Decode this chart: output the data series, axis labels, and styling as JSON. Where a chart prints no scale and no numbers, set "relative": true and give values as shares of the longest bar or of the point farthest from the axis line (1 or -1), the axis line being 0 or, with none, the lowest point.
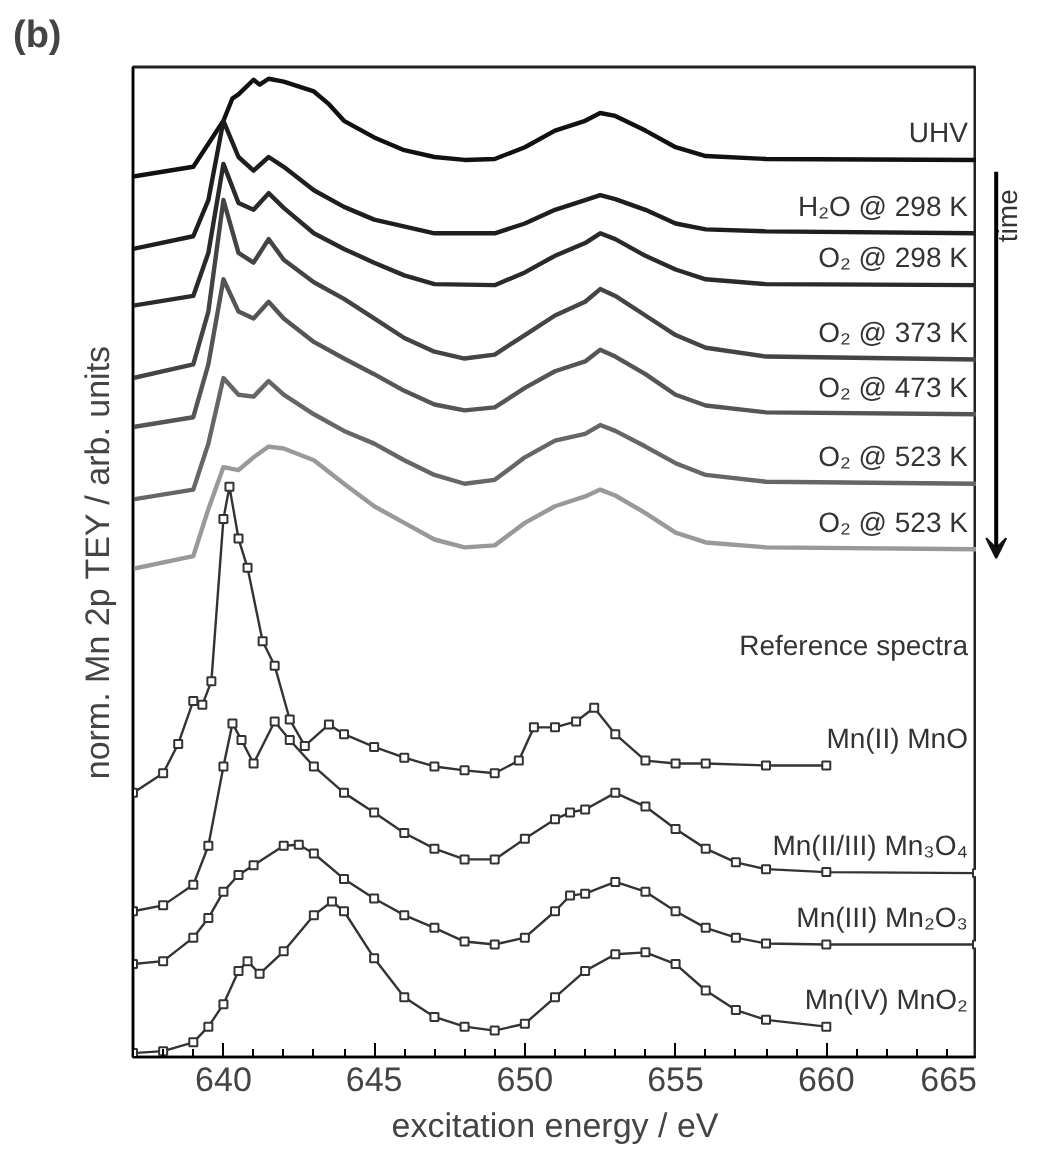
{
  "chart_data": {
    "type": "line",
    "relative": true,
    "xlabel": "excitation energy / eV",
    "ylabel": "norm. Mn 2p TEY / arb. units",
    "xlim": [
      637,
      665
    ],
    "xticks": [
      640,
      645,
      650,
      655,
      660,
      665
    ],
    "tick_labels": "x",
    "legend": false,
    "grid": false,
    "annotations": [
      "(b)",
      "Reference spectra",
      "time"
    ],
    "series": [
      {
        "name": "UHV",
        "color": "#111111",
        "x": [
          637,
          639,
          640,
          640.3,
          640.5,
          641,
          641.2,
          641.5,
          642,
          643,
          643.5,
          644,
          645,
          646,
          647,
          648,
          649,
          650,
          651,
          652,
          652.5,
          653,
          654,
          655,
          656,
          658,
          665
        ],
        "values": [
          0.9,
          0.91,
          0.957,
          0.98,
          0.984,
          0.999,
          0.994,
          1.0,
          0.997,
          0.987,
          0.974,
          0.957,
          0.94,
          0.927,
          0.92,
          0.917,
          0.918,
          0.93,
          0.947,
          0.957,
          0.965,
          0.962,
          0.947,
          0.93,
          0.921,
          0.918,
          0.917
        ]
      },
      {
        "name": "H₂O @ 298 K",
        "color": "#1e1e1e",
        "x": [
          637,
          639,
          639.5,
          640,
          640.5,
          641,
          641.5,
          642,
          643,
          644,
          645,
          647,
          649,
          650,
          651,
          652,
          652.5,
          653,
          654,
          655,
          656,
          658,
          665
        ],
        "values": [
          0.826,
          0.839,
          0.876,
          0.957,
          0.92,
          0.906,
          0.92,
          0.91,
          0.886,
          0.869,
          0.856,
          0.842,
          0.842,
          0.852,
          0.866,
          0.876,
          0.881,
          0.877,
          0.866,
          0.852,
          0.846,
          0.844,
          0.842
        ]
      },
      {
        "name": "O₂ @ 298 K",
        "color": "#2a2a2a",
        "x": [
          637,
          639,
          639.5,
          640,
          640.5,
          641,
          641.5,
          642,
          643,
          644,
          645,
          646,
          647,
          649,
          650,
          651,
          652,
          652.5,
          653,
          654,
          655,
          656,
          658,
          665
        ],
        "values": [
          0.768,
          0.778,
          0.822,
          0.913,
          0.873,
          0.866,
          0.883,
          0.868,
          0.842,
          0.826,
          0.812,
          0.799,
          0.79,
          0.789,
          0.802,
          0.819,
          0.832,
          0.842,
          0.836,
          0.819,
          0.805,
          0.795,
          0.79,
          0.789
        ]
      },
      {
        "name": "O₂ @ 373 K",
        "color": "#444444",
        "x": [
          637,
          639,
          639.5,
          640,
          640.5,
          641,
          641.5,
          642,
          643,
          644,
          645,
          646,
          647,
          648,
          649,
          650,
          651,
          652,
          652.5,
          653,
          654,
          655,
          656,
          658,
          665
        ],
        "values": [
          0.694,
          0.708,
          0.762,
          0.876,
          0.822,
          0.812,
          0.836,
          0.815,
          0.792,
          0.775,
          0.755,
          0.735,
          0.721,
          0.714,
          0.718,
          0.738,
          0.758,
          0.772,
          0.785,
          0.778,
          0.758,
          0.738,
          0.725,
          0.716,
          0.713
        ]
      },
      {
        "name": "O₂ @ 473 K",
        "color": "#555555",
        "x": [
          637,
          639,
          639.5,
          640,
          640.5,
          641,
          641.5,
          642,
          643,
          644,
          645,
          646,
          647,
          648,
          649,
          650,
          651,
          652,
          652.5,
          653,
          654,
          655,
          656,
          658,
          665
        ],
        "values": [
          0.644,
          0.654,
          0.708,
          0.795,
          0.762,
          0.755,
          0.772,
          0.755,
          0.731,
          0.714,
          0.698,
          0.681,
          0.667,
          0.661,
          0.664,
          0.684,
          0.701,
          0.711,
          0.723,
          0.716,
          0.698,
          0.677,
          0.666,
          0.659,
          0.657
        ]
      },
      {
        "name": "O₂ @ 523 K",
        "color": "#666666",
        "x": [
          637,
          639,
          639.5,
          640,
          640.5,
          641,
          641.5,
          642,
          643,
          644,
          645,
          646,
          647,
          648,
          649,
          650,
          651,
          652,
          652.5,
          653,
          654,
          655,
          656,
          658,
          665
        ],
        "values": [
          0.57,
          0.58,
          0.627,
          0.694,
          0.677,
          0.675,
          0.691,
          0.677,
          0.657,
          0.64,
          0.627,
          0.61,
          0.595,
          0.586,
          0.59,
          0.613,
          0.63,
          0.637,
          0.646,
          0.64,
          0.624,
          0.607,
          0.595,
          0.588,
          0.586
        ]
      },
      {
        "name": "O₂ @ 523 K",
        "color": "#999999",
        "x": [
          637,
          639,
          639.5,
          640,
          640.5,
          641,
          641.5,
          642,
          643,
          644,
          645,
          646,
          647,
          648,
          649,
          650,
          651,
          652,
          652.5,
          653,
          654,
          655,
          656,
          658,
          665
        ],
        "values": [
          0.499,
          0.512,
          0.56,
          0.603,
          0.6,
          0.613,
          0.624,
          0.622,
          0.61,
          0.586,
          0.563,
          0.546,
          0.529,
          0.521,
          0.523,
          0.546,
          0.563,
          0.573,
          0.58,
          0.574,
          0.556,
          0.536,
          0.526,
          0.521,
          0.519
        ]
      },
      {
        "name": "Mn(II) MnO",
        "color": "#333333",
        "marker": "square",
        "x": [
          637,
          638,
          638.5,
          639,
          639.3,
          639.6,
          640,
          640.2,
          640.5,
          640.8,
          641.3,
          641.7,
          642.2,
          642.7,
          643.5,
          644,
          645,
          646,
          647,
          648,
          649,
          649.8,
          650.3,
          651,
          651.7,
          652.3,
          653,
          654,
          655,
          656,
          658,
          660
        ],
        "values": [
          0.27,
          0.29,
          0.32,
          0.364,
          0.36,
          0.384,
          0.55,
          0.583,
          0.53,
          0.5,
          0.425,
          0.4,
          0.345,
          0.318,
          0.34,
          0.33,
          0.317,
          0.306,
          0.297,
          0.293,
          0.29,
          0.303,
          0.337,
          0.337,
          0.343,
          0.357,
          0.33,
          0.303,
          0.3,
          0.3,
          0.298,
          0.298
        ]
      },
      {
        "name": "Mn(II/III) Mn₃O₄",
        "color": "#333333",
        "marker": "square",
        "x": [
          637,
          638,
          639,
          639.5,
          640,
          640.3,
          640.6,
          641,
          641.7,
          642.2,
          643,
          644,
          645,
          646,
          647,
          648,
          649,
          650,
          651,
          651.5,
          652,
          653,
          654,
          655,
          656,
          657,
          658,
          660,
          665
        ],
        "values": [
          0.149,
          0.155,
          0.176,
          0.216,
          0.297,
          0.341,
          0.324,
          0.3,
          0.343,
          0.324,
          0.297,
          0.27,
          0.25,
          0.229,
          0.213,
          0.202,
          0.202,
          0.223,
          0.243,
          0.25,
          0.253,
          0.27,
          0.256,
          0.233,
          0.213,
          0.199,
          0.192,
          0.189,
          0.188
        ]
      },
      {
        "name": "Mn(III) Mn₂O₃",
        "color": "#333333",
        "marker": "square",
        "x": [
          637,
          638,
          639,
          639.5,
          640,
          640.5,
          641,
          642,
          642.5,
          643,
          644,
          645,
          646,
          647,
          648,
          649,
          650,
          651,
          651.5,
          652,
          653,
          654,
          655,
          656,
          657,
          658,
          660,
          665
        ],
        "values": [
          0.095,
          0.098,
          0.122,
          0.142,
          0.169,
          0.186,
          0.196,
          0.216,
          0.217,
          0.208,
          0.182,
          0.162,
          0.145,
          0.132,
          0.118,
          0.115,
          0.122,
          0.149,
          0.165,
          0.167,
          0.179,
          0.169,
          0.149,
          0.132,
          0.122,
          0.116,
          0.115,
          0.115
        ]
      },
      {
        "name": "Mn(IV) MnO₂",
        "color": "#333333",
        "marker": "square",
        "x": [
          637,
          638,
          639,
          639.5,
          640,
          640.5,
          640.8,
          641.2,
          642,
          643,
          643.6,
          644,
          645,
          646,
          647,
          648,
          649,
          650,
          651,
          652,
          653,
          654,
          655,
          656,
          657,
          658,
          660
        ],
        "values": [
          0.004,
          0.006,
          0.015,
          0.031,
          0.054,
          0.088,
          0.098,
          0.085,
          0.108,
          0.145,
          0.159,
          0.149,
          0.101,
          0.061,
          0.041,
          0.031,
          0.027,
          0.034,
          0.061,
          0.088,
          0.105,
          0.107,
          0.095,
          0.068,
          0.048,
          0.038,
          0.031
        ]
      }
    ]
  }
}
